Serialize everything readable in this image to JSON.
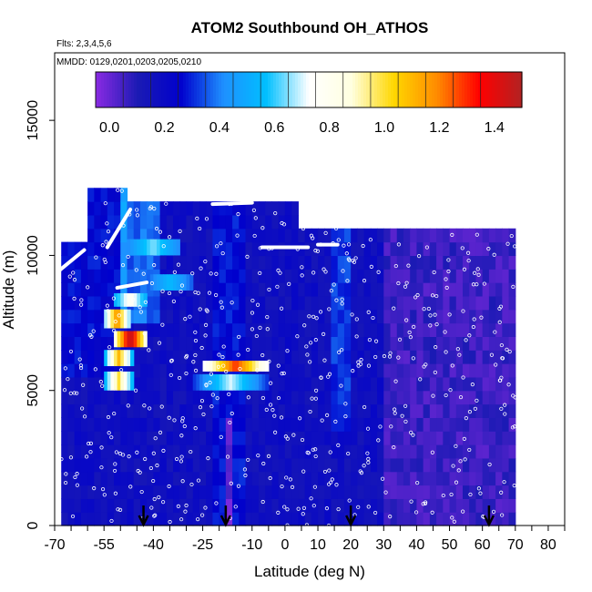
{
  "chart_data": {
    "type": "heatmap",
    "title": "ATOM2 Southbound OH_ATHOS",
    "flights_label": "Flts: 2,3,4,5,6",
    "dates_label": "MMDD: 0129,0201,0203,0205,0210",
    "xlabel": "Latitude (deg N)",
    "ylabel": "Altitude (m)",
    "xlim": [
      -70,
      85
    ],
    "ylim": [
      0,
      17500
    ],
    "x_ticks": [
      -70,
      -55,
      -40,
      -25,
      -10,
      0,
      10,
      20,
      30,
      40,
      50,
      60,
      70,
      80
    ],
    "x_tick_labels": [
      "-70",
      "-55",
      "-40",
      "-25",
      "-10",
      "0",
      "10",
      "20",
      "30",
      "40",
      "50",
      "60",
      "70",
      "80"
    ],
    "y_ticks": [
      0,
      5000,
      10000,
      15000
    ],
    "y_tick_labels": [
      "0",
      "5000",
      "10000",
      "15000"
    ],
    "colorbar": {
      "range": [
        -0.05,
        1.5
      ],
      "ticks": [
        0.0,
        0.2,
        0.4,
        0.6,
        0.8,
        1.0,
        1.2,
        1.4
      ],
      "tick_labels": [
        "0.0",
        "0.2",
        "0.4",
        "0.6",
        "0.8",
        "1.0",
        "1.2",
        "1.4"
      ],
      "colors": [
        "#8a2be2",
        "#1a1ab4",
        "#0000cd",
        "#1e90ff",
        "#00bfff",
        "#ffffff",
        "#ffffe0",
        "#ffd700",
        "#ff8c00",
        "#ff0000",
        "#b22222"
      ]
    },
    "profile_arrows_lat": [
      -43,
      -18,
      20,
      62
    ]
  }
}
